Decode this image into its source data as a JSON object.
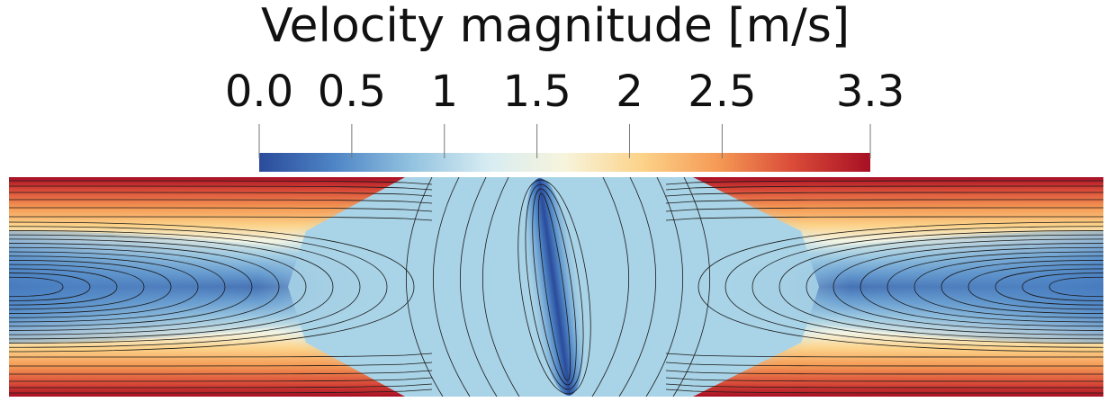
{
  "colorbar": {
    "title": "Velocity magnitude [m/s]",
    "ticks": [
      {
        "value": 0.0,
        "label": "0.0"
      },
      {
        "value": 0.5,
        "label": "0.5"
      },
      {
        "value": 1.0,
        "label": "1"
      },
      {
        "value": 1.5,
        "label": "1.5"
      },
      {
        "value": 2.0,
        "label": "2"
      },
      {
        "value": 2.5,
        "label": "2.5"
      },
      {
        "value": 3.3,
        "label": "3.3"
      }
    ],
    "range": [
      0.0,
      3.3
    ],
    "colormap": [
      "#2a4b9b",
      "#4f86c6",
      "#93c3e0",
      "#d7ecf2",
      "#f7f4dc",
      "#fcd38a",
      "#f59a55",
      "#d94a38",
      "#a80f24"
    ]
  },
  "field": {
    "description_colors": {
      "low": "#2a4b9b",
      "mid": "#a9d3e6",
      "high": "#a80f24"
    },
    "streamline_color": "#1a1a1a"
  }
}
